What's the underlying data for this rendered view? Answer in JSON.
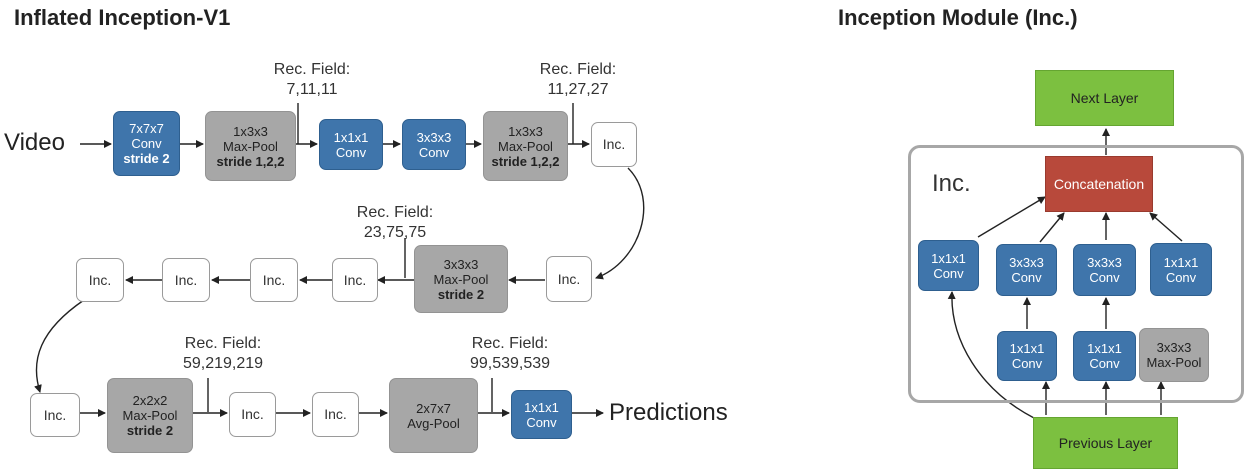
{
  "left_title": "Inflated Inception-V1",
  "right_title": "Inception Module (Inc.)",
  "input_label": "Video",
  "output_label": "Predictions",
  "row1": {
    "conv7": [
      "7x7x7",
      "Conv",
      "stride 2"
    ],
    "pool1": [
      "1x3x3",
      "Max-Pool",
      "stride 1,2,2"
    ],
    "conv1": [
      "1x1x1",
      "Conv"
    ],
    "conv3": [
      "3x3x3",
      "Conv"
    ],
    "pool2": [
      "1x3x3",
      "Max-Pool",
      "stride 1,2,2"
    ],
    "inc": "Inc."
  },
  "row2": {
    "inc_right": "Inc.",
    "pool": [
      "3x3x3",
      "Max-Pool",
      "stride 2"
    ],
    "inc1": "Inc.",
    "inc2": "Inc.",
    "inc3": "Inc.",
    "inc4": "Inc."
  },
  "row3": {
    "inc1": "Inc.",
    "pool": [
      "2x2x2",
      "Max-Pool",
      "stride 2"
    ],
    "inc2": "Inc.",
    "inc3": "Inc.",
    "avgpool": [
      "2x7x7",
      "Avg-Pool"
    ],
    "conv": [
      "1x1x1",
      "Conv"
    ]
  },
  "receptive_fields": [
    {
      "label": "Rec. Field:",
      "value": "7,11,11"
    },
    {
      "label": "Rec. Field:",
      "value": "11,27,27"
    },
    {
      "label": "Rec. Field:",
      "value": "23,75,75"
    },
    {
      "label": "Rec. Field:",
      "value": "59,219,219"
    },
    {
      "label": "Rec. Field:",
      "value": "99,539,539"
    }
  ],
  "module": {
    "frame_label": "Inc.",
    "next_layer": "Next Layer",
    "concatenation": "Concatenation",
    "previous_layer": "Previous Layer",
    "branch1": [
      "1x1x1",
      "Conv"
    ],
    "branch2_top": [
      "3x3x3",
      "Conv"
    ],
    "branch2_bottom": [
      "1x1x1",
      "Conv"
    ],
    "branch3_top": [
      "3x3x3",
      "Conv"
    ],
    "branch3_bottom": [
      "1x1x1",
      "Conv"
    ],
    "branch4_top": [
      "1x1x1",
      "Conv"
    ],
    "branch4_bottom": [
      "3x3x3",
      "Max-Pool"
    ]
  },
  "colors": {
    "conv": "#3f75ab",
    "pool": "#a7a7a7",
    "layer": "#7cc040",
    "concat": "#b8493b"
  }
}
